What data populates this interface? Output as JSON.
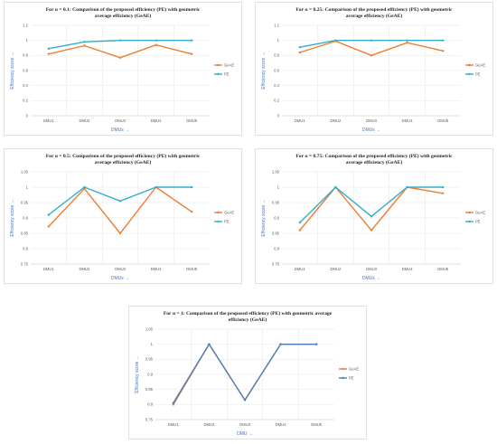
{
  "chart_data": [
    {
      "type": "line",
      "title": "For α = 0.1: Comparison of the proposed efficiency (PE) with geometric average efficiency (GeAE)",
      "title_lines": [
        "For α = 0.1: Comparison of the proposed efficiency (PE) with geometric",
        "average efficiency (GeAE)"
      ],
      "xlabel": "DMUs →",
      "ylabel": "Efficiency score →",
      "categories": [
        "DMU1",
        "DMU2",
        "DMU3",
        "DMU4",
        "DMU5"
      ],
      "ylim": [
        0,
        1.2
      ],
      "yticks": [
        "0",
        "0.2",
        "0.4",
        "0.6",
        "0.8",
        "1",
        "1.2"
      ],
      "grid": true,
      "legend": "right",
      "series": [
        {
          "name": "GeAE",
          "color": "#ed7d31",
          "values": [
            0.82,
            0.93,
            0.77,
            0.94,
            0.82
          ]
        },
        {
          "name": "PE",
          "color": "#2eb0cc",
          "values": [
            0.89,
            0.98,
            1.0,
            1.0,
            1.0
          ]
        }
      ]
    },
    {
      "type": "line",
      "title": "For α = 0.25: Comparison of the proposed efficiency (PE) with geometric average efficiency (GeAE)",
      "title_lines": [
        "For α = 0.25: Comparison of the proposed efficiency (PE) with geometric",
        "average efficiency (GeAE)"
      ],
      "xlabel": "DMUs →",
      "ylabel": "Efficiency score →",
      "categories": [
        "DMU1",
        "DMU2",
        "DMU3",
        "DMU4",
        "DMU5"
      ],
      "ylim": [
        0,
        1.2
      ],
      "yticks": [
        "0",
        "0.2",
        "0.4",
        "0.6",
        "0.8",
        "1",
        "1.2"
      ],
      "grid": true,
      "legend": "right",
      "series": [
        {
          "name": "GeAE",
          "color": "#ed7d31",
          "values": [
            0.84,
            0.99,
            0.8,
            0.97,
            0.86
          ]
        },
        {
          "name": "PE",
          "color": "#2eb0cc",
          "values": [
            0.91,
            1.0,
            1.0,
            1.0,
            1.0
          ]
        }
      ]
    },
    {
      "type": "line",
      "title": "For α = 0.5: Comparison of the proposed efficiency (PE) with geometric average efficiency (GeAE)",
      "title_lines": [
        "For α = 0.5: Comparison of the proposed efficiency (PE) with geometric",
        "average efficiency (GeAE)"
      ],
      "xlabel": "DMUs →",
      "ylabel": "Efficiency score →",
      "categories": [
        "DMU1",
        "DMU2",
        "DMU3",
        "DMU4",
        "DMU5"
      ],
      "ylim": [
        0.75,
        1.05
      ],
      "yticks": [
        "0.75",
        "0.8",
        "0.85",
        "0.9",
        "0.95",
        "1",
        "1.05"
      ],
      "grid": true,
      "legend": "right",
      "series": [
        {
          "name": "GeAE",
          "color": "#ed7d31",
          "values": [
            0.872,
            0.995,
            0.85,
            1.0,
            0.92
          ]
        },
        {
          "name": "PE",
          "color": "#2eb0cc",
          "values": [
            0.91,
            1.0,
            0.955,
            1.0,
            1.0
          ]
        }
      ]
    },
    {
      "type": "line",
      "title": "For α = 0.75: Comparison of the proposed efficiency (PE) with geometric average efficiency (GeAE)",
      "title_lines": [
        "For α = 0.75: Comparison of the proposed efficiency (PE) with geometric",
        "average efficiency (GeAE)"
      ],
      "xlabel": "DMUs →",
      "ylabel": "Efficiency score →",
      "categories": [
        "DMU1",
        "DMU2",
        "DMU3",
        "DMU4",
        "DMU5"
      ],
      "ylim": [
        0.75,
        1.05
      ],
      "yticks": [
        "0.75",
        "0.8",
        "0.85",
        "0.9",
        "0.95",
        "1",
        "1.05"
      ],
      "grid": true,
      "legend": "right",
      "series": [
        {
          "name": "GeAE",
          "color": "#ed7d31",
          "values": [
            0.86,
            1.0,
            0.86,
            1.0,
            0.98
          ]
        },
        {
          "name": "PE",
          "color": "#2eb0cc",
          "values": [
            0.885,
            1.0,
            0.905,
            1.0,
            1.0
          ]
        }
      ]
    },
    {
      "type": "line",
      "title": "For α = 1: Comparison of the proposed efficiency (PE) with geometric average efficiency (GeAE)",
      "title_lines": [
        "For α = 1: Comparison of the proposed efficiency (PE) with geometric average",
        "efficiency (GeAE)"
      ],
      "xlabel": "DMU →",
      "ylabel": "Efficiency score →",
      "categories": [
        "DMU1",
        "DMU2",
        "DMU3",
        "DMU4",
        "DMU5"
      ],
      "ylim": [
        0.75,
        1.05
      ],
      "yticks": [
        "0.75",
        "0.8",
        "0.85",
        "0.9",
        "0.95",
        "1",
        "1.05"
      ],
      "grid": true,
      "legend": "right",
      "series": [
        {
          "name": "GeAE",
          "color": "#ed7d31",
          "values": [
            0.8,
            1.0,
            0.815,
            1.0,
            1.0
          ]
        },
        {
          "name": "PE",
          "color": "#4a7ebb",
          "values": [
            0.805,
            1.0,
            0.815,
            1.0,
            1.0
          ]
        }
      ]
    }
  ]
}
